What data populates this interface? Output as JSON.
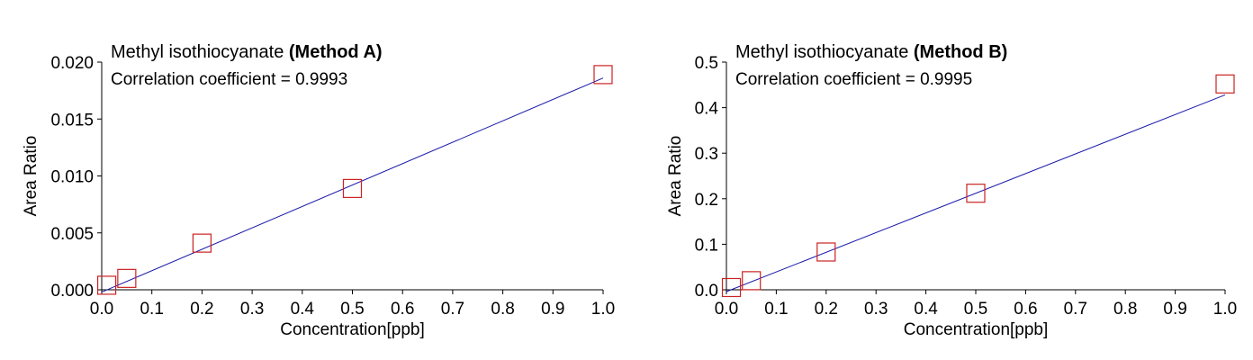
{
  "chart_data": [
    {
      "type": "scatter",
      "title_prefix": "Methyl isothiocyanate ",
      "title_bold": "(Method A)",
      "annotation": "Correlation coefficient = 0.9993",
      "xlabel": "Concentration[ppb]",
      "ylabel": "Area Ratio",
      "xlim": [
        0.0,
        1.0
      ],
      "ylim": [
        0.0,
        0.02
      ],
      "x_ticks": [
        "0.0",
        "0.1",
        "0.2",
        "0.3",
        "0.4",
        "0.5",
        "0.6",
        "0.7",
        "0.8",
        "0.9",
        "1.0"
      ],
      "y_ticks": [
        "0.000",
        "0.005",
        "0.010",
        "0.015",
        "0.020"
      ],
      "points": {
        "x": [
          0.01,
          0.05,
          0.2,
          0.5,
          1.0
        ],
        "y": [
          0.0004,
          0.001,
          0.0041,
          0.0089,
          0.0189
        ]
      },
      "fit_line": {
        "x": [
          0.0,
          1.0
        ],
        "y": [
          -0.0002,
          0.0186
        ]
      },
      "marker_color": "#cc2222",
      "line_color": "#1a1aaa",
      "grid": false
    },
    {
      "type": "scatter",
      "title_prefix": "Methyl isothiocyanate ",
      "title_bold": "(Method B)",
      "annotation": "Correlation coefficient = 0.9995",
      "xlabel": "Concentration[ppb]",
      "ylabel": "Area Ratio",
      "xlim": [
        0.0,
        1.0
      ],
      "ylim": [
        0.0,
        0.5
      ],
      "x_ticks": [
        "0.0",
        "0.1",
        "0.2",
        "0.3",
        "0.4",
        "0.5",
        "0.6",
        "0.7",
        "0.8",
        "0.9",
        "1.0"
      ],
      "y_ticks": [
        "0.0",
        "0.1",
        "0.2",
        "0.3",
        "0.4",
        "0.5"
      ],
      "points": {
        "x": [
          0.01,
          0.05,
          0.2,
          0.5,
          1.0
        ],
        "y": [
          0.005,
          0.02,
          0.083,
          0.212,
          0.452
        ]
      },
      "fit_line": {
        "x": [
          0.0,
          1.0
        ],
        "y": [
          -0.004,
          0.428
        ]
      },
      "marker_color": "#cc2222",
      "line_color": "#1a1aaa",
      "grid": false
    }
  ]
}
